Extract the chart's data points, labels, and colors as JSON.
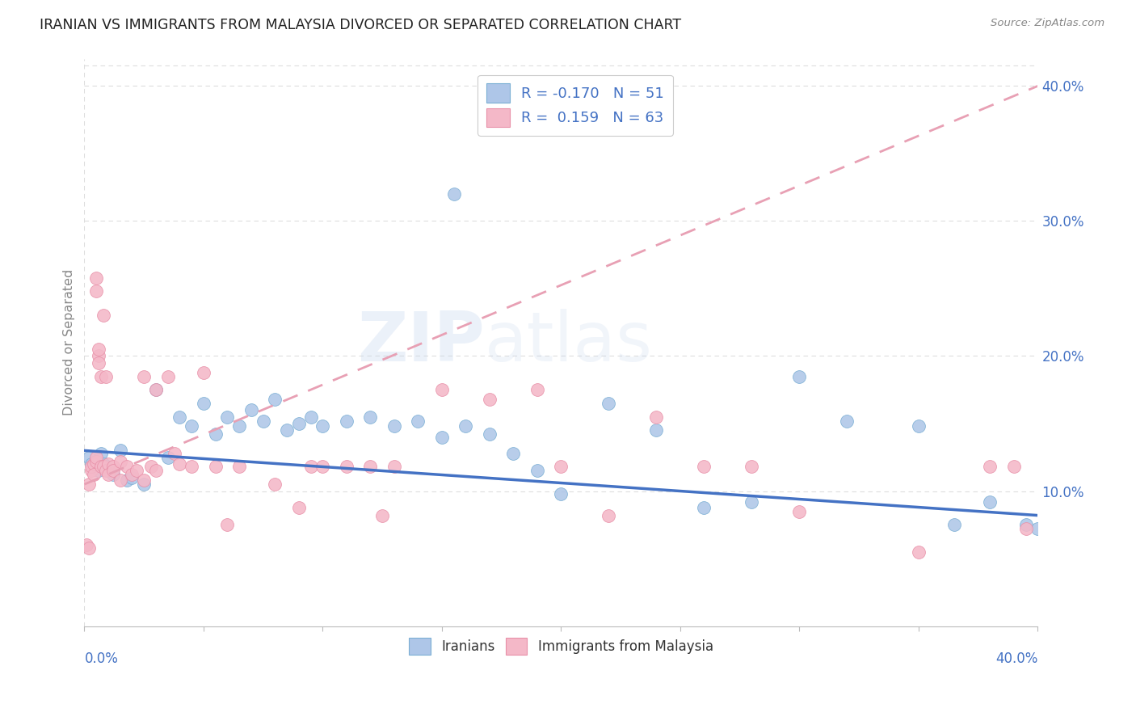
{
  "title": "IRANIAN VS IMMIGRANTS FROM MALAYSIA DIVORCED OR SEPARATED CORRELATION CHART",
  "source": "Source: ZipAtlas.com",
  "ylabel": "Divorced or Separated",
  "watermark_text": "ZIPatlas",
  "blue_scatter_color": "#aec6e8",
  "blue_scatter_edge": "#7bafd4",
  "pink_scatter_color": "#f4b8c8",
  "pink_scatter_edge": "#e890a8",
  "blue_line_color": "#4472c4",
  "pink_line_color": "#e8a0b4",
  "axis_label_color": "#4472c4",
  "ylabel_color": "#888888",
  "title_color": "#222222",
  "source_color": "#888888",
  "grid_color": "#dddddd",
  "legend_top": [
    "R = -0.170   N = 51",
    "R =  0.159   N = 63"
  ],
  "legend_bottom": [
    "Iranians",
    "Immigrants from Malaysia"
  ],
  "xlim": [
    0.0,
    0.4
  ],
  "ylim": [
    0.0,
    0.42
  ],
  "blue_line_x0": 0.0,
  "blue_line_y0": 0.13,
  "blue_line_x1": 0.4,
  "blue_line_y1": 0.082,
  "pink_line_x0": 0.0,
  "pink_line_y0": 0.105,
  "pink_line_x1": 0.4,
  "pink_line_y1": 0.4,
  "iranians_points": [
    [
      0.002,
      0.125
    ],
    [
      0.003,
      0.12
    ],
    [
      0.004,
      0.118
    ],
    [
      0.005,
      0.122
    ],
    [
      0.006,
      0.115
    ],
    [
      0.007,
      0.128
    ],
    [
      0.008,
      0.12
    ],
    [
      0.009,
      0.118
    ],
    [
      0.01,
      0.115
    ],
    [
      0.012,
      0.112
    ],
    [
      0.015,
      0.13
    ],
    [
      0.018,
      0.108
    ],
    [
      0.02,
      0.11
    ],
    [
      0.025,
      0.105
    ],
    [
      0.03,
      0.175
    ],
    [
      0.035,
      0.125
    ],
    [
      0.04,
      0.155
    ],
    [
      0.045,
      0.148
    ],
    [
      0.05,
      0.165
    ],
    [
      0.055,
      0.142
    ],
    [
      0.06,
      0.155
    ],
    [
      0.065,
      0.148
    ],
    [
      0.07,
      0.16
    ],
    [
      0.075,
      0.152
    ],
    [
      0.08,
      0.168
    ],
    [
      0.085,
      0.145
    ],
    [
      0.09,
      0.15
    ],
    [
      0.095,
      0.155
    ],
    [
      0.1,
      0.148
    ],
    [
      0.11,
      0.152
    ],
    [
      0.12,
      0.155
    ],
    [
      0.13,
      0.148
    ],
    [
      0.14,
      0.152
    ],
    [
      0.15,
      0.14
    ],
    [
      0.155,
      0.32
    ],
    [
      0.16,
      0.148
    ],
    [
      0.17,
      0.142
    ],
    [
      0.18,
      0.128
    ],
    [
      0.19,
      0.115
    ],
    [
      0.2,
      0.098
    ],
    [
      0.22,
      0.165
    ],
    [
      0.24,
      0.145
    ],
    [
      0.26,
      0.088
    ],
    [
      0.28,
      0.092
    ],
    [
      0.3,
      0.185
    ],
    [
      0.32,
      0.152
    ],
    [
      0.35,
      0.148
    ],
    [
      0.365,
      0.075
    ],
    [
      0.38,
      0.092
    ],
    [
      0.395,
      0.075
    ],
    [
      0.4,
      0.072
    ]
  ],
  "malaysia_points": [
    [
      0.001,
      0.06
    ],
    [
      0.002,
      0.058
    ],
    [
      0.002,
      0.105
    ],
    [
      0.003,
      0.115
    ],
    [
      0.003,
      0.118
    ],
    [
      0.004,
      0.12
    ],
    [
      0.004,
      0.112
    ],
    [
      0.005,
      0.122
    ],
    [
      0.005,
      0.125
    ],
    [
      0.005,
      0.248
    ],
    [
      0.005,
      0.258
    ],
    [
      0.006,
      0.2
    ],
    [
      0.006,
      0.205
    ],
    [
      0.006,
      0.195
    ],
    [
      0.007,
      0.118
    ],
    [
      0.007,
      0.185
    ],
    [
      0.008,
      0.23
    ],
    [
      0.008,
      0.118
    ],
    [
      0.009,
      0.115
    ],
    [
      0.009,
      0.185
    ],
    [
      0.01,
      0.12
    ],
    [
      0.01,
      0.112
    ],
    [
      0.012,
      0.118
    ],
    [
      0.012,
      0.115
    ],
    [
      0.015,
      0.122
    ],
    [
      0.015,
      0.108
    ],
    [
      0.018,
      0.118
    ],
    [
      0.02,
      0.112
    ],
    [
      0.022,
      0.115
    ],
    [
      0.025,
      0.108
    ],
    [
      0.025,
      0.185
    ],
    [
      0.028,
      0.118
    ],
    [
      0.03,
      0.115
    ],
    [
      0.03,
      0.175
    ],
    [
      0.035,
      0.185
    ],
    [
      0.038,
      0.128
    ],
    [
      0.04,
      0.12
    ],
    [
      0.045,
      0.118
    ],
    [
      0.05,
      0.188
    ],
    [
      0.055,
      0.118
    ],
    [
      0.06,
      0.075
    ],
    [
      0.065,
      0.118
    ],
    [
      0.08,
      0.105
    ],
    [
      0.09,
      0.088
    ],
    [
      0.095,
      0.118
    ],
    [
      0.1,
      0.118
    ],
    [
      0.11,
      0.118
    ],
    [
      0.12,
      0.118
    ],
    [
      0.125,
      0.082
    ],
    [
      0.13,
      0.118
    ],
    [
      0.15,
      0.175
    ],
    [
      0.17,
      0.168
    ],
    [
      0.19,
      0.175
    ],
    [
      0.2,
      0.118
    ],
    [
      0.22,
      0.082
    ],
    [
      0.24,
      0.155
    ],
    [
      0.26,
      0.118
    ],
    [
      0.28,
      0.118
    ],
    [
      0.3,
      0.085
    ],
    [
      0.38,
      0.118
    ],
    [
      0.39,
      0.118
    ],
    [
      0.395,
      0.072
    ],
    [
      0.35,
      0.055
    ]
  ]
}
